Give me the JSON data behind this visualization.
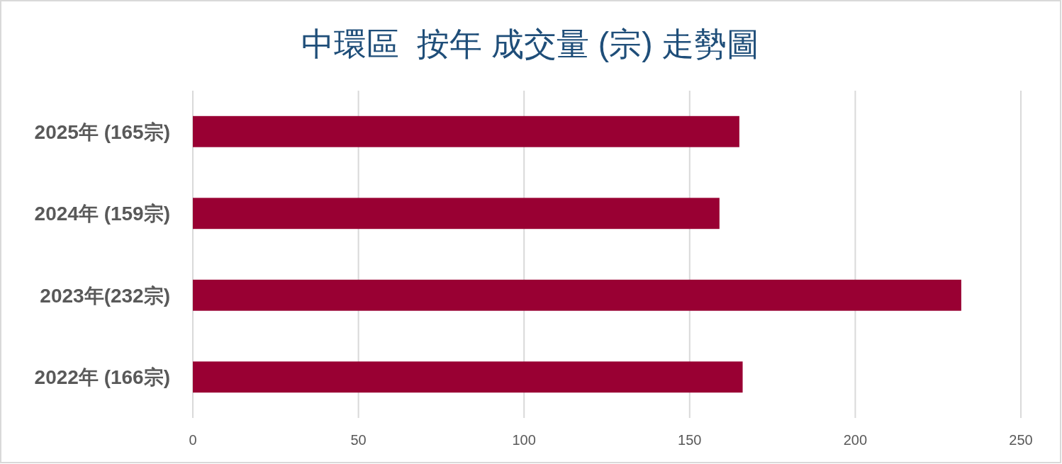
{
  "chart_data": {
    "type": "bar",
    "orientation": "horizontal",
    "title": "中環區  按年 成交量 (宗) 走勢圖",
    "categories": [
      "2025年 (165宗)",
      "2024年 (159宗)",
      "2023年(232宗)",
      "2022年 (166宗)"
    ],
    "values": [
      165,
      159,
      232,
      166
    ],
    "color": "#990033",
    "xlim": [
      0,
      250
    ],
    "xticks": [
      0,
      50,
      100,
      150,
      200,
      250
    ],
    "grid": "x"
  }
}
